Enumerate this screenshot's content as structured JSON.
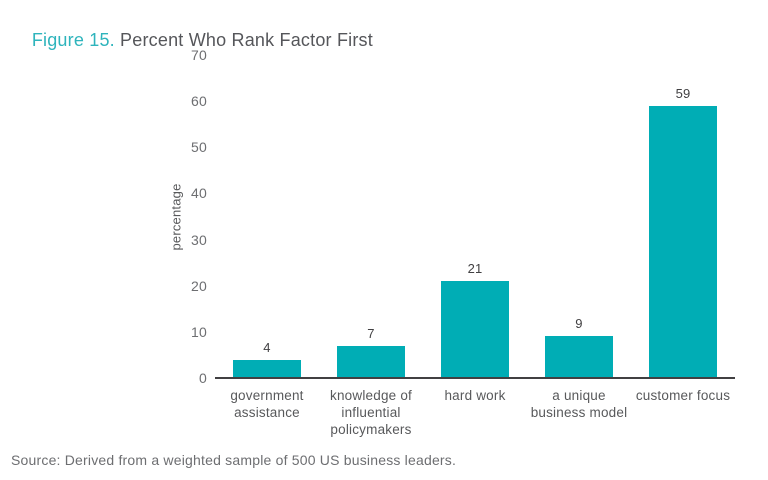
{
  "figure": {
    "title_prefix": "Figure 15.",
    "title_rest": " Percent Who Rank Factor First",
    "source": "Source: Derived from a weighted sample of 500 US business leaders."
  },
  "colors": {
    "background": "#ffffff",
    "bar": "#00adb5",
    "title_prefix": "#2eb4bc",
    "title_text": "#55565a",
    "axis_line": "#414042",
    "tick_label": "#6d6e71",
    "category_label": "#58595b",
    "value_label": "#414042",
    "source_text": "#6d6e71"
  },
  "chart_data": {
    "type": "bar",
    "title": "Percent Who Rank Factor First",
    "categories": [
      "government assistance",
      "knowledge of influential policymakers",
      "hard work",
      "a unique business model",
      "customer focus"
    ],
    "values": [
      4,
      7,
      21,
      9,
      59
    ],
    "value_labels": [
      "4",
      "7",
      "21",
      "9",
      "59"
    ],
    "category_label_lines": [
      [
        "government",
        "assistance"
      ],
      [
        "knowledge of",
        "influential",
        "policymakers"
      ],
      [
        "hard work"
      ],
      [
        "a unique",
        "business model"
      ],
      [
        "customer focus"
      ]
    ],
    "xlabel": "",
    "ylabel": "percentage",
    "ylim": [
      0,
      70
    ],
    "yticks": [
      0,
      10,
      20,
      30,
      40,
      50,
      60,
      70
    ],
    "grid": false,
    "legend": "none",
    "bar_color": "#00adb5"
  }
}
